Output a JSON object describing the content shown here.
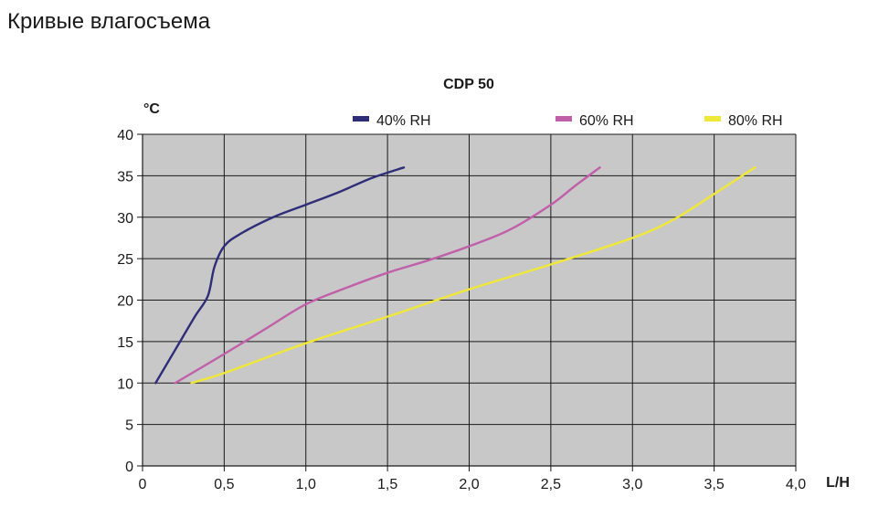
{
  "page": {
    "heading": "Кривые влагосъема"
  },
  "chart_data": {
    "type": "line",
    "title": "CDP 50",
    "ylabel": "°C",
    "xlabel": "L/H",
    "xlim": [
      0,
      4.0
    ],
    "ylim": [
      0,
      40
    ],
    "grid": true,
    "legend_position": "top",
    "plot_background": "#c8c8c8",
    "x_ticks": [
      0,
      0.5,
      1.0,
      1.5,
      2.0,
      2.5,
      3.0,
      3.5,
      4.0
    ],
    "x_tick_labels": [
      "0",
      "0,5",
      "1,0",
      "1,5",
      "2,0",
      "2,5",
      "3,0",
      "3,5",
      "4,0"
    ],
    "y_ticks": [
      0,
      5,
      10,
      15,
      20,
      25,
      30,
      35,
      40
    ],
    "y_tick_labels": [
      "0",
      "5",
      "10",
      "15",
      "20",
      "25",
      "30",
      "35",
      "40"
    ],
    "series": [
      {
        "name": "40% RH",
        "color": "#2e2e78",
        "points": [
          [
            0.08,
            10
          ],
          [
            0.2,
            14
          ],
          [
            0.32,
            18
          ],
          [
            0.4,
            20.5
          ],
          [
            0.44,
            24
          ],
          [
            0.5,
            26.5
          ],
          [
            0.6,
            28
          ],
          [
            0.8,
            30
          ],
          [
            1.0,
            31.5
          ],
          [
            1.2,
            33
          ],
          [
            1.4,
            34.7
          ],
          [
            1.6,
            36
          ]
        ]
      },
      {
        "name": "60% RH",
        "color": "#c060a8",
        "points": [
          [
            0.2,
            10
          ],
          [
            0.5,
            13.5
          ],
          [
            0.75,
            16.5
          ],
          [
            1.0,
            19.5
          ],
          [
            1.25,
            21.5
          ],
          [
            1.5,
            23.3
          ],
          [
            1.75,
            24.8
          ],
          [
            2.0,
            26.5
          ],
          [
            2.25,
            28.5
          ],
          [
            2.5,
            31.5
          ],
          [
            2.65,
            33.8
          ],
          [
            2.8,
            36
          ]
        ]
      },
      {
        "name": "80% RH",
        "color": "#f0e838",
        "points": [
          [
            0.3,
            10
          ],
          [
            0.5,
            11.2
          ],
          [
            1.0,
            14.8
          ],
          [
            1.5,
            18
          ],
          [
            2.0,
            21.3
          ],
          [
            2.5,
            24.3
          ],
          [
            3.0,
            27.5
          ],
          [
            3.25,
            29.7
          ],
          [
            3.5,
            32.8
          ],
          [
            3.75,
            36
          ]
        ]
      }
    ]
  }
}
